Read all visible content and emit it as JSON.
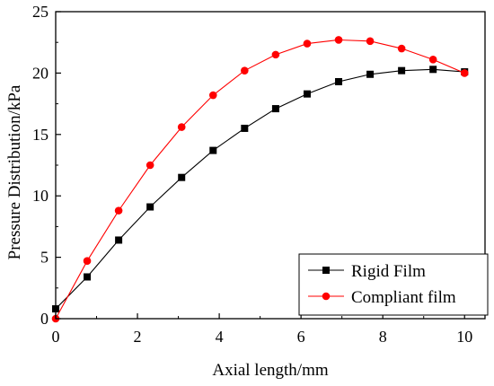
{
  "chart_data": {
    "type": "line",
    "title": "",
    "xlabel": "Axial length/mm",
    "ylabel": "Pressure Distribution/kPa",
    "xlim": [
      0,
      10.5
    ],
    "ylim": [
      0,
      25
    ],
    "xticks": [
      0,
      2,
      4,
      6,
      8,
      10
    ],
    "yticks": [
      0,
      5,
      10,
      15,
      20,
      25
    ],
    "grid": false,
    "legend_position": "bottom-right",
    "series": [
      {
        "name": "Rigid Film",
        "marker": "square",
        "color": "#000000",
        "x": [
          0,
          0.77,
          1.54,
          2.31,
          3.08,
          3.85,
          4.62,
          5.38,
          6.15,
          6.92,
          7.69,
          8.46,
          9.23,
          10.0
        ],
        "y": [
          0.8,
          3.4,
          6.4,
          9.1,
          11.5,
          13.7,
          15.5,
          17.1,
          18.3,
          19.3,
          19.9,
          20.2,
          20.3,
          20.1
        ]
      },
      {
        "name": "Compliant film",
        "marker": "circle",
        "color": "#ff0000",
        "x": [
          0,
          0.77,
          1.54,
          2.31,
          3.08,
          3.85,
          4.62,
          5.38,
          6.15,
          6.92,
          7.69,
          8.46,
          9.23,
          10.0
        ],
        "y": [
          0.0,
          4.7,
          8.8,
          12.5,
          15.6,
          18.2,
          20.2,
          21.5,
          22.4,
          22.7,
          22.6,
          22.0,
          21.1,
          20.0
        ]
      }
    ]
  }
}
